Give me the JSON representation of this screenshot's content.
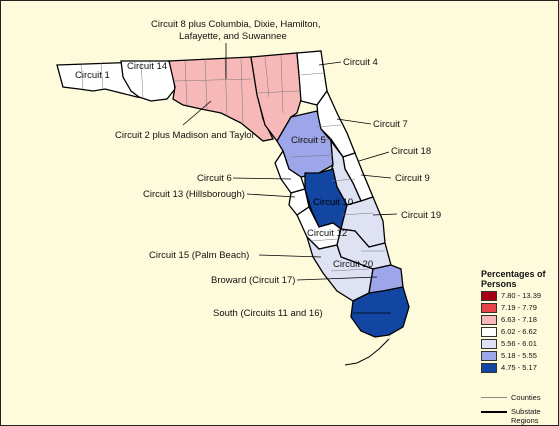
{
  "map": {
    "labels": {
      "circuit1": "Circuit 1",
      "circuit14": "Circuit 14",
      "circuit8": "Circuit 8 plus Columbia, Dixie, Hamilton,",
      "circuit8_line2": "Lafayette, and Suwannee",
      "circuit4": "Circuit 4",
      "circuit2": "Circuit 2 plus Madison and Taylor",
      "circuit7": "Circuit 7",
      "circuit5": "Circuit 5",
      "circuit18": "Circuit 18",
      "circuit6": "Circuit 6",
      "circuit9": "Circuit 9",
      "circuit13": "Circuit 13 (Hillsborough)",
      "circuit10": "Circuit 10",
      "circuit19": "Circuit 19",
      "circuit12": "Circuit 12",
      "circuit15": "Circuit 15 (Palm Beach)",
      "circuit20": "Circuit 20",
      "broward": "Broward (Circuit 17)",
      "south": "South (Circuits 11 and 16)"
    },
    "region_shading": {
      "circuit1": "6.02 - 6.62",
      "circuit14": "6.02 - 6.62",
      "circuit8_plus": "6.63 - 7.18",
      "circuit2_plus": "6.63 - 7.18",
      "circuit4": "6.02 - 6.62",
      "circuit5": "5.18 - 5.55",
      "circuit7": "6.02 - 6.62",
      "circuit18": "6.02 - 6.62",
      "circuit6": "6.02 - 6.62",
      "circuit9": "5.56 - 6.01",
      "circuit13": "6.02 - 6.62",
      "circuit10": "4.75 - 5.17",
      "circuit19": "5.56 - 6.01",
      "circuit12": "6.02 - 6.62",
      "circuit15": "5.56 - 6.01",
      "circuit20": "5.56 - 6.01",
      "broward": "5.18 - 5.55",
      "south": "4.75 - 5.17"
    }
  },
  "legend": {
    "title_line1": "Percentages of",
    "title_line2": "Persons",
    "items": [
      {
        "label": "7.80 - 13.39",
        "color": "#a50014"
      },
      {
        "label": "7.19 - 7.79",
        "color": "#e8434a"
      },
      {
        "label": "6.63 - 7.18",
        "color": "#f7b9b8"
      },
      {
        "label": "6.02 - 6.62",
        "color": "#ffffff"
      },
      {
        "label": "5.56 - 6.01",
        "color": "#dfe2f3"
      },
      {
        "label": "5.18 - 5.55",
        "color": "#9ea6ea"
      },
      {
        "label": "4.75 - 5.17",
        "color": "#1346a2"
      }
    ],
    "counties_label": "Counties",
    "substate_label_line1": "Substate",
    "substate_label_line2": "Regions"
  }
}
